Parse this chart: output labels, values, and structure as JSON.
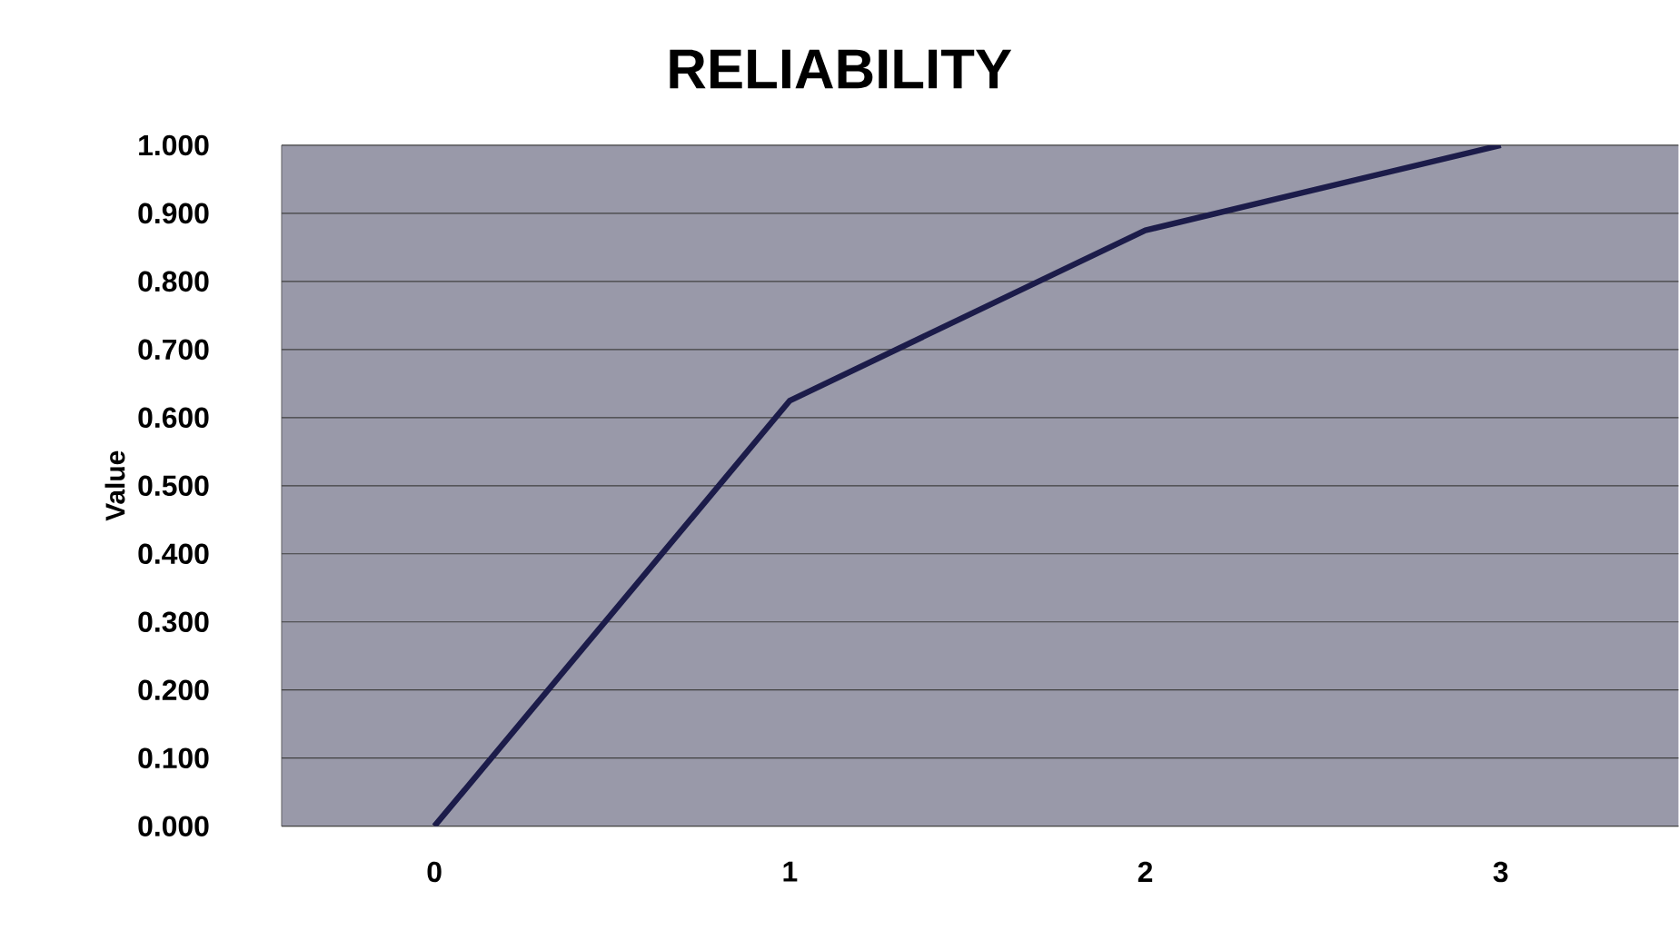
{
  "chart_data": {
    "type": "line",
    "title": "RELIABILITY",
    "ylabel": "Value",
    "categories": [
      "0",
      "1",
      "2",
      "3"
    ],
    "series": [
      {
        "color": "#1c1c4a",
        "values": [
          0.0,
          0.625,
          0.875,
          1.0
        ]
      }
    ],
    "ylim": [
      0,
      1
    ],
    "yticks": [
      {
        "value": 0,
        "label": "0.000"
      },
      {
        "value": 0.1,
        "label": "0.100"
      },
      {
        "value": 0.2,
        "label": "0.200"
      },
      {
        "value": 0.3,
        "label": "0.300"
      },
      {
        "value": 0.4,
        "label": "0.400"
      },
      {
        "value": 0.5,
        "label": "0.500"
      },
      {
        "value": 0.6,
        "label": "0.600"
      },
      {
        "value": 0.7,
        "label": "0.700"
      },
      {
        "value": 0.8,
        "label": "0.800"
      },
      {
        "value": 0.9,
        "label": "0.900"
      },
      {
        "value": 1,
        "label": "1.000"
      }
    ],
    "grid": "y",
    "marker": "none",
    "line_style": "solid"
  }
}
